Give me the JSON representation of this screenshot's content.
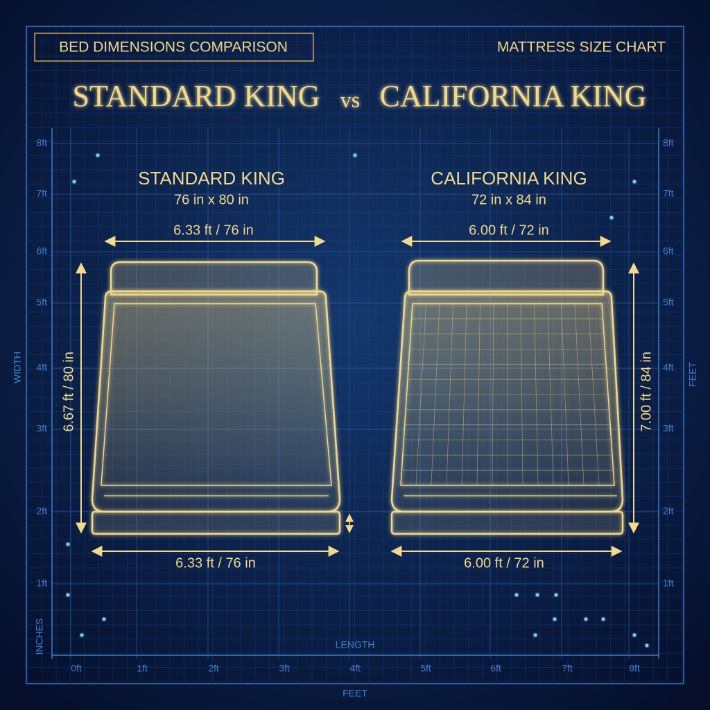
{
  "header": {
    "left": "BED DIMENSIONS COMPARISON",
    "right": "MATTRESS SIZE CHART"
  },
  "title": {
    "left": "STANDARD KING",
    "middle": "vs",
    "right": "CALIFORNIA KING"
  },
  "beds": [
    {
      "name": "STANDARD KING",
      "size": "76 in x 80 in",
      "top_width": "6.33 ft / 76 in",
      "bottom_width": "6.33 ft / 76 in",
      "length": "6.67 ft / 80 in"
    },
    {
      "name": "CALIFORNIA KING",
      "size": "72 in x 84 in",
      "top_width": "6.00 ft / 72 in",
      "bottom_width": "6.00 ft / 72 in",
      "length": "7.00 ft / 84 in"
    }
  ],
  "axes": {
    "left_label": "WIDTH",
    "right_label": "FEET",
    "corner_label": "INCHES",
    "bottom_label": "LENGTH",
    "bottom_units": "FEET",
    "side_ticks": [
      "8ft",
      "7ft",
      "6ft",
      "5ft",
      "4ft",
      "3ft",
      "2ft",
      "1ft"
    ],
    "bottom_ticks": [
      "0ft",
      "1ft",
      "2ft",
      "3ft",
      "4ft",
      "5ft",
      "6ft",
      "7ft",
      "8ft"
    ]
  }
}
